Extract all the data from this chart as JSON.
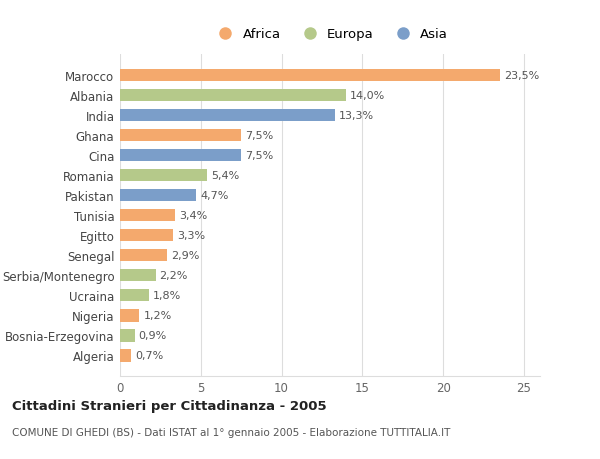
{
  "countries": [
    "Marocco",
    "Albania",
    "India",
    "Ghana",
    "Cina",
    "Romania",
    "Pakistan",
    "Tunisia",
    "Egitto",
    "Senegal",
    "Serbia/Montenegro",
    "Ucraina",
    "Nigeria",
    "Bosnia-Erzegovina",
    "Algeria"
  ],
  "values": [
    23.5,
    14.0,
    13.3,
    7.5,
    7.5,
    5.4,
    4.7,
    3.4,
    3.3,
    2.9,
    2.2,
    1.8,
    1.2,
    0.9,
    0.7
  ],
  "labels": [
    "23,5%",
    "14,0%",
    "13,3%",
    "7,5%",
    "7,5%",
    "5,4%",
    "4,7%",
    "3,4%",
    "3,3%",
    "2,9%",
    "2,2%",
    "1,8%",
    "1,2%",
    "0,9%",
    "0,7%"
  ],
  "continents": [
    "Africa",
    "Europa",
    "Asia",
    "Africa",
    "Asia",
    "Europa",
    "Asia",
    "Africa",
    "Africa",
    "Africa",
    "Europa",
    "Europa",
    "Africa",
    "Europa",
    "Africa"
  ],
  "colors": {
    "Africa": "#F4A96D",
    "Europa": "#B5C98A",
    "Asia": "#7B9EC9"
  },
  "legend_order": [
    "Africa",
    "Europa",
    "Asia"
  ],
  "title": "Cittadini Stranieri per Cittadinanza - 2005",
  "subtitle": "COMUNE DI GHEDI (BS) - Dati ISTAT al 1° gennaio 2005 - Elaborazione TUTTITALIA.IT",
  "xlim": [
    0,
    26
  ],
  "xticks": [
    0,
    5,
    10,
    15,
    20,
    25
  ],
  "background_color": "#ffffff",
  "grid_color": "#dddddd"
}
